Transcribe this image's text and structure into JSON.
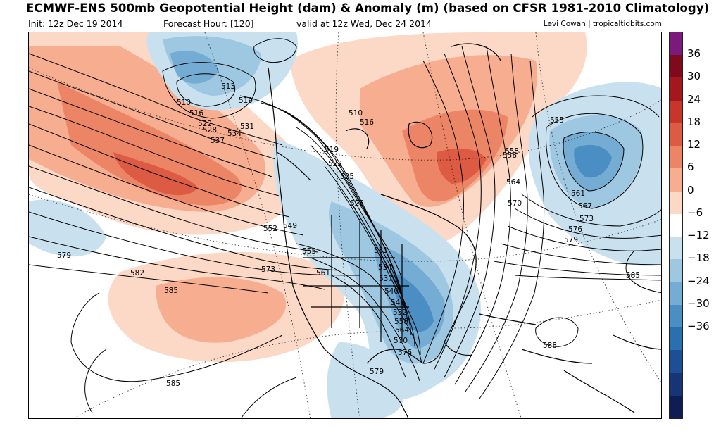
{
  "header": {
    "title": "ECMWF-ENS 500mb Geopotential Height (dam) & Anomaly (m) (based on CFSR 1981-2010 Climatology)",
    "init": "Init: 12z Dec 19 2014",
    "forecast_hour": "Forecast Hour: [120]",
    "valid": "valid at 12z Wed, Dec 24 2014",
    "credit": "Levi Cowan | tropicaltidbits.com"
  },
  "colorbar": {
    "labels": [
      "36",
      "30",
      "24",
      "18",
      "12",
      "6",
      "0",
      "−6",
      "−12",
      "−18",
      "−24",
      "−30",
      "−36"
    ],
    "colors": [
      "#7b1a7b",
      "#7e0a1c",
      "#a3171d",
      "#c7352b",
      "#de5b43",
      "#ec8566",
      "#f6ad90",
      "#fcd8c6",
      "#ffffff",
      "#c9e1ef",
      "#9ec8e2",
      "#74acd3",
      "#4a8ec3",
      "#2a6fb0",
      "#1c4f95",
      "#173474",
      "#0f1d52"
    ]
  },
  "map": {
    "contour_labels": [
      "510",
      "513",
      "519",
      "510",
      "516",
      "516",
      "522",
      "528",
      "531",
      "534",
      "537",
      "519",
      "522",
      "525",
      "528",
      "531",
      "534",
      "537",
      "540",
      "546",
      "552",
      "558",
      "564",
      "570",
      "576",
      "579",
      "549",
      "552",
      "555",
      "561",
      "573",
      "579",
      "582",
      "585",
      "585",
      "585",
      "555",
      "558",
      "558",
      "561",
      "564",
      "567",
      "570",
      "573",
      "576",
      "579",
      "585",
      "588"
    ]
  }
}
